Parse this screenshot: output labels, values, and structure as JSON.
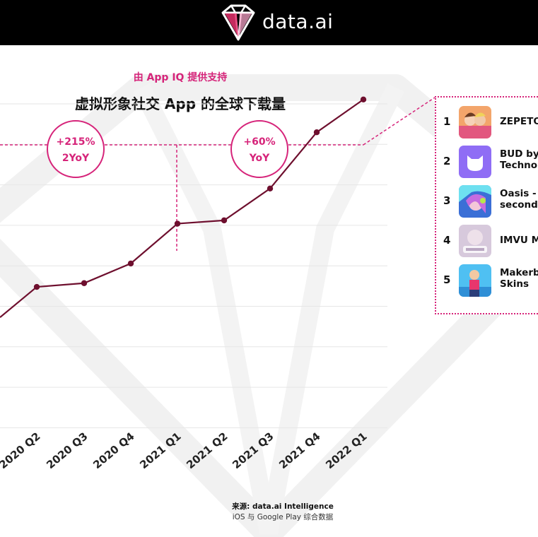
{
  "brand": {
    "name": "data.ai"
  },
  "header": {
    "subtitle": "由 App IQ 提供支持",
    "title": "虚拟形象社交 App 的全球下载量"
  },
  "annotations": [
    {
      "value": "+215%",
      "label": "2YoY"
    },
    {
      "value": "+60%",
      "label": "YoY"
    }
  ],
  "ranking": [
    {
      "rank": "1",
      "name_lines": [
        "ZEPETO"
      ],
      "icon": "zepeto-app-icon"
    },
    {
      "rank": "2",
      "name_lines": [
        "BUD by",
        "Technol"
      ],
      "icon": "bud-app-icon"
    },
    {
      "rank": "3",
      "name_lines": [
        "Oasis - S",
        "second l"
      ],
      "icon": "oasis-app-icon"
    },
    {
      "rank": "4",
      "name_lines": [
        "IMVU M"
      ],
      "icon": "imvu-app-icon"
    },
    {
      "rank": "5",
      "name_lines": [
        "Makerb",
        "Skins"
      ],
      "icon": "makerblox-app-icon"
    }
  ],
  "footer": {
    "source": "来源: data.ai Intelligence",
    "note": "iOS 与 Google Play 综合数据"
  },
  "colors": {
    "accent": "#d6247a",
    "line": "#6e0f2e",
    "grid": "#e6e6e6",
    "header_bg": "#000000"
  },
  "chart_data": {
    "type": "line",
    "title": "虚拟形象社交 App 的全球下载量",
    "categories": [
      "2020 Q2",
      "2020 Q3",
      "2020 Q4",
      "2021 Q1",
      "2021 Q2",
      "2021 Q3",
      "2021 Q4",
      "2022 Q1"
    ],
    "values": [
      3.0,
      3.08,
      3.5,
      4.35,
      4.42,
      5.1,
      6.3,
      7.0
    ],
    "ylim": [
      0,
      7.6
    ],
    "grid": true,
    "yaxis_labels_visible": false,
    "clipped_start_point": 2.35
  }
}
